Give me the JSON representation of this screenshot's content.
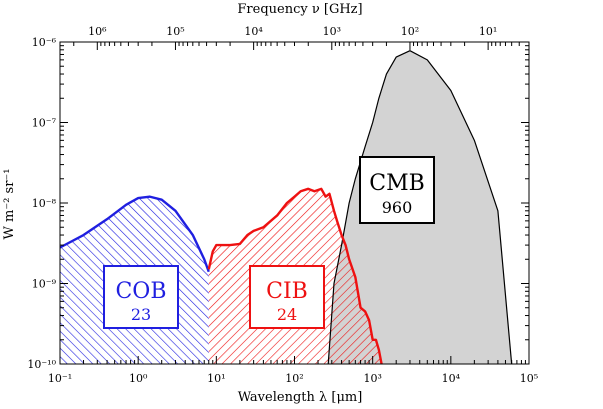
{
  "chart_data": {
    "type": "area",
    "xlabel": "Wavelength λ [μm]",
    "top_xlabel": "Frequency ν [GHz]",
    "ylabel": "W m⁻² sr⁻¹",
    "x_scale": "log",
    "y_scale": "log",
    "xlim": [
      0.1,
      100000
    ],
    "ylim": [
      1e-10,
      1e-06
    ],
    "x_ticks": [
      "10⁻¹",
      "10⁰",
      "10¹",
      "10²",
      "10³",
      "10⁴",
      "10⁵"
    ],
    "y_ticks": [
      "10⁻¹⁰",
      "10⁻⁹",
      "10⁻⁸",
      "10⁻⁷",
      "10⁻⁶"
    ],
    "top_ticks": [
      "10⁶",
      "10⁵",
      "10⁴",
      "10³",
      "10²",
      "10¹"
    ],
    "grid": false,
    "series": [
      {
        "name": "COB",
        "value_label": "23",
        "color": "#1f1fe0",
        "fill": "hatched",
        "x": [
          0.1,
          0.2,
          0.4,
          0.7,
          1.0,
          1.4,
          2.0,
          3.0,
          5.0,
          7.0,
          8.0
        ],
        "y": [
          2.8e-09,
          4e-09,
          6.3e-09,
          9.5e-09,
          1.15e-08,
          1.2e-08,
          1.1e-08,
          8e-09,
          4e-09,
          2e-09,
          1.4e-09
        ]
      },
      {
        "name": "CIB",
        "value_label": "24",
        "color": "#ee1111",
        "fill": "hatched",
        "x": [
          8.0,
          9.0,
          10,
          15,
          20,
          25,
          30,
          40,
          60,
          80,
          100,
          120,
          150,
          180,
          220,
          250,
          280,
          320,
          350,
          400,
          450,
          500,
          600,
          700,
          800,
          900,
          1000,
          1100,
          1200,
          1300
        ],
        "y": [
          1.5e-09,
          2.5e-09,
          3e-09,
          3e-09,
          3.1e-09,
          4e-09,
          4.5e-09,
          5e-09,
          7e-09,
          1e-08,
          1.2e-08,
          1.4e-08,
          1.5e-08,
          1.4e-08,
          1.5e-08,
          1.2e-08,
          1.3e-08,
          8e-09,
          6e-09,
          4e-09,
          3e-09,
          2e-09,
          1.2e-09,
          5e-10,
          4.5e-10,
          3.5e-10,
          2e-10,
          2e-10,
          1.5e-10,
          1e-10
        ]
      },
      {
        "name": "CMB",
        "value_label": "960",
        "color": "#000000",
        "fill": "#d3d3d3",
        "x": [
          270,
          320,
          400,
          500,
          600,
          800,
          1000,
          1200,
          1500,
          2000,
          3000,
          5000,
          10000,
          20000,
          40000,
          60000
        ],
        "y": [
          1e-10,
          1e-09,
          3e-09,
          1e-08,
          2e-08,
          5e-08,
          1e-07,
          2e-07,
          4e-07,
          6.5e-07,
          7.8e-07,
          6e-07,
          2.5e-07,
          6e-08,
          8e-09,
          1e-10
        ]
      }
    ]
  }
}
